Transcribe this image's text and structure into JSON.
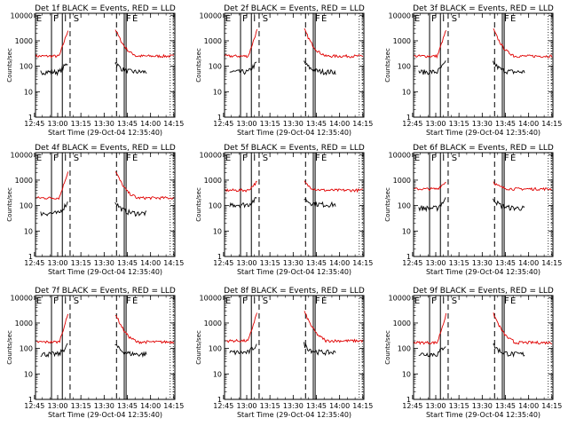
{
  "chart_data": [
    {
      "type": "line",
      "title": "Det 1f BLACK = Events, RED = LLD",
      "ylabel": "Counts/sec",
      "xlabel": "Start Time (29-Oct-04 12:35:40)",
      "base_red": 250,
      "base_black": 60,
      "peak_red": 3000,
      "peak_black": 150
    },
    {
      "type": "line",
      "title": "Det 2f BLACK = Events, RED = LLD",
      "ylabel": "Counts/sec",
      "xlabel": "Start Time (29-Oct-04 12:35:40)",
      "base_red": 250,
      "base_black": 60,
      "peak_red": 3000,
      "peak_black": 150
    },
    {
      "type": "line",
      "title": "Det 3f BLACK = Events, RED = LLD",
      "ylabel": "Counts/sec",
      "xlabel": "Start Time (29-Oct-04 12:35:40)",
      "base_red": 250,
      "base_black": 60,
      "peak_red": 3000,
      "peak_black": 150
    },
    {
      "type": "line",
      "title": "Det 4f BLACK = Events, RED = LLD",
      "ylabel": "Counts/sec",
      "xlabel": "Start Time (29-Oct-04 12:35:40)",
      "base_red": 200,
      "base_black": 50,
      "peak_red": 2500,
      "peak_black": 150
    },
    {
      "type": "line",
      "title": "Det 5f BLACK = Events, RED = LLD",
      "ylabel": "Counts/sec",
      "xlabel": "Start Time (29-Oct-04 12:35:40)",
      "base_red": 400,
      "base_black": 110,
      "peak_red": 900,
      "peak_black": 200
    },
    {
      "type": "line",
      "title": "Det 6f BLACK = Events, RED = LLD",
      "ylabel": "Counts/sec",
      "xlabel": "Start Time (29-Oct-04 12:35:40)",
      "base_red": 450,
      "base_black": 80,
      "peak_red": 900,
      "peak_black": 200
    },
    {
      "type": "line",
      "title": "Det 7f BLACK = Events, RED = LLD",
      "ylabel": "Counts/sec",
      "xlabel": "Start Time (29-Oct-04 12:35:40)",
      "base_red": 180,
      "base_black": 60,
      "peak_red": 2500,
      "peak_black": 150
    },
    {
      "type": "line",
      "title": "Det 8f BLACK = Events, RED = LLD",
      "ylabel": "Counts/sec",
      "xlabel": "Start Time (29-Oct-04 12:35:40)",
      "base_red": 200,
      "base_black": 70,
      "peak_red": 3000,
      "peak_black": 150
    },
    {
      "type": "line",
      "title": "Det 9f BLACK = Events, RED = LLD",
      "ylabel": "Counts/sec",
      "xlabel": "Start Time (29-Oct-04 12:35:40)",
      "base_red": 170,
      "base_black": 60,
      "peak_red": 2500,
      "peak_black": 150
    }
  ],
  "shared": {
    "xticks": [
      "12:45",
      "13:00",
      "13:15",
      "13:30",
      "13:45",
      "14:00",
      "14:15"
    ],
    "yticks": [
      "1",
      "10",
      "100",
      "1000",
      "10000"
    ],
    "ymin": 1,
    "ymax": 12000,
    "xstart_min": 765.67,
    "xend_min": 855.67,
    "markers": [
      {
        "label": "E",
        "time": "12:45"
      },
      {
        "label": "F",
        "time": "12:56"
      },
      {
        "label": "I",
        "time": "13:03"
      },
      {
        "label": "S",
        "time": "13:09"
      },
      {
        "label": "F",
        "time": "13:43"
      },
      {
        "label": "E",
        "time": "13:47"
      }
    ],
    "colors": {
      "events": "#000000",
      "lld": "#e00000"
    }
  }
}
